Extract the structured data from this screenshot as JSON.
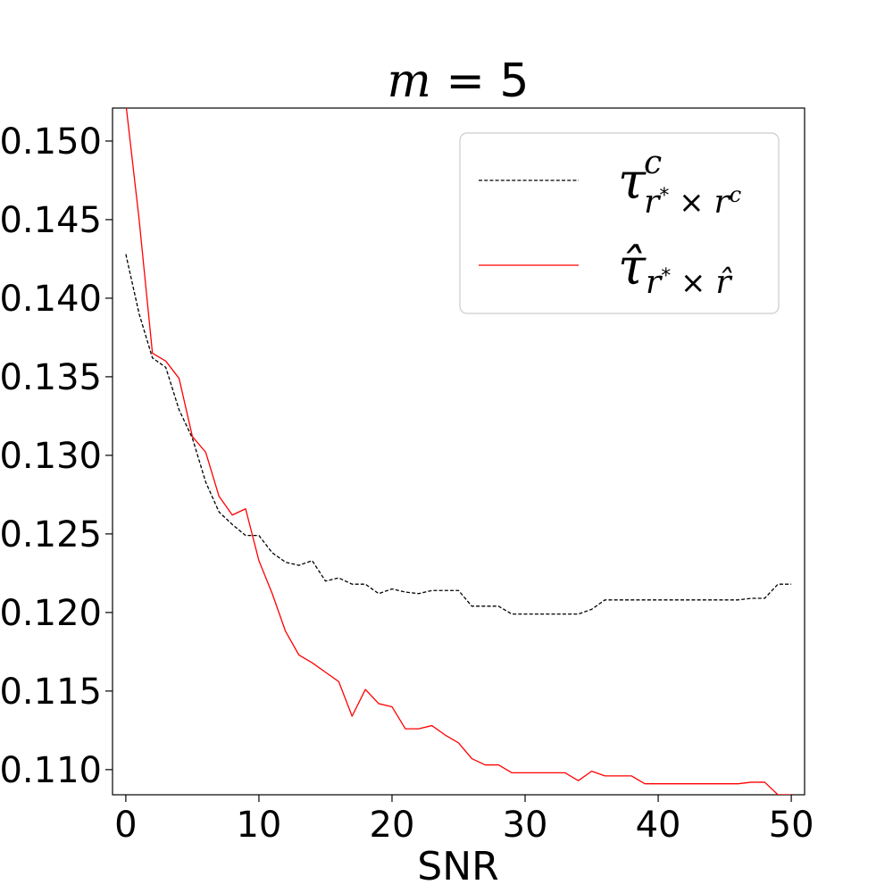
{
  "chart_data": {
    "type": "line",
    "title_var": "m",
    "title_eq": " = 5",
    "xlabel": "SNR",
    "ylabel": "",
    "xlim": [
      -1,
      51
    ],
    "ylim": [
      0.1084,
      0.1521
    ],
    "xticks": [
      "0",
      "10",
      "20",
      "30",
      "40",
      "50"
    ],
    "xtick_values": [
      0,
      10,
      20,
      30,
      40,
      50
    ],
    "yticks": [
      "0.110",
      "0.115",
      "0.120",
      "0.125",
      "0.130",
      "0.135",
      "0.140",
      "0.145",
      "0.150"
    ],
    "ytick_values": [
      0.11,
      0.115,
      0.12,
      0.125,
      0.13,
      0.135,
      0.14,
      0.145,
      0.15
    ],
    "grid": false,
    "legend_position": "top-right",
    "x": [
      0,
      1,
      2,
      3,
      4,
      5,
      6,
      7,
      8,
      9,
      10,
      11,
      12,
      13,
      14,
      15,
      16,
      17,
      18,
      19,
      20,
      21,
      22,
      23,
      24,
      25,
      26,
      27,
      28,
      29,
      30,
      31,
      32,
      33,
      34,
      35,
      36,
      37,
      38,
      39,
      40,
      41,
      42,
      43,
      44,
      45,
      46,
      47,
      48,
      49,
      50
    ],
    "series": [
      {
        "name": "τ^c_{r*×r^c}",
        "color": "#000000",
        "style": "dashed",
        "values": [
          0.1428,
          0.139,
          0.1362,
          0.1356,
          0.1329,
          0.1311,
          0.1283,
          0.1264,
          0.1256,
          0.1249,
          0.1249,
          0.1238,
          0.1232,
          0.123,
          0.1233,
          0.122,
          0.1222,
          0.1218,
          0.1218,
          0.1212,
          0.1215,
          0.1213,
          0.1212,
          0.1214,
          0.1214,
          0.1214,
          0.1204,
          0.1204,
          0.1204,
          0.1199,
          0.1199,
          0.1199,
          0.1199,
          0.1199,
          0.1199,
          0.1202,
          0.1208,
          0.1208,
          0.1208,
          0.1208,
          0.1208,
          0.1208,
          0.1208,
          0.1208,
          0.1208,
          0.1208,
          0.1208,
          0.1209,
          0.1209,
          0.1218,
          0.1218
        ]
      },
      {
        "name": "τ̂_{r*×r̂}",
        "color": "#ff0000",
        "style": "solid",
        "values": [
          0.1524,
          0.145,
          0.1365,
          0.136,
          0.1349,
          0.1312,
          0.1302,
          0.1274,
          0.1262,
          0.1266,
          0.1233,
          0.1212,
          0.1188,
          0.1173,
          0.1168,
          0.1162,
          0.1156,
          0.1134,
          0.1151,
          0.1142,
          0.114,
          0.1126,
          0.1126,
          0.1128,
          0.1122,
          0.1117,
          0.1107,
          0.1103,
          0.1103,
          0.1098,
          0.1098,
          0.1098,
          0.1098,
          0.1098,
          0.1093,
          0.1099,
          0.1096,
          0.1096,
          0.1096,
          0.1091,
          0.1091,
          0.1091,
          0.1091,
          0.1091,
          0.1091,
          0.1091,
          0.1091,
          0.1092,
          0.1092,
          0.1084,
          0.1084
        ]
      }
    ]
  },
  "legend": {
    "entry1": {
      "base": "τ",
      "sup": "c",
      "sub_r": "r",
      "sub_star": "*",
      "sub_times": " × ",
      "sub_r2": "r",
      "sub_r2_sup": "c"
    },
    "entry2": {
      "base": "τ̂",
      "sub_r": "r",
      "sub_star": "*",
      "sub_times": " × ",
      "sub_r2": "r̂"
    }
  }
}
